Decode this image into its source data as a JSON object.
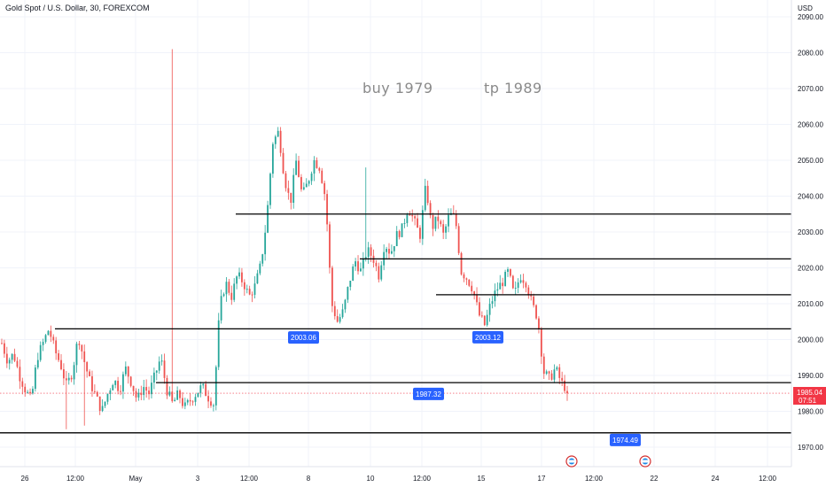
{
  "header": {
    "title": "Gold Spot / U.S. Dollar, 30, FOREXCOM"
  },
  "colors": {
    "up": "#26a69a",
    "down": "#ef5350",
    "badge": "#2962ff",
    "price": "#f23645",
    "line": "#000000"
  },
  "chart_data": {
    "type": "candlestick",
    "title": "Gold Spot / U.S. Dollar, 30, FOREXCOM",
    "currency": "USD",
    "ylim": [
      1967,
      2093
    ],
    "y_ticks": [
      "1970.00",
      "1980.00",
      "1990.00",
      "2000.00",
      "2010.00",
      "2020.00",
      "2030.00",
      "2040.00",
      "2050.00",
      "2060.00",
      "2070.00",
      "2080.00",
      "2090.00"
    ],
    "x_ticks": [
      "26",
      "12:00",
      "May",
      "3",
      "12:00",
      "8",
      "10",
      "12:00",
      "15",
      "17",
      "12:00",
      "22",
      "24",
      "12:00"
    ],
    "annotations": [
      {
        "text": "buy  1979",
        "y": 2073
      },
      {
        "text": "tp  1989",
        "y": 2073
      }
    ],
    "levels": [
      {
        "y": 2035,
        "from": "Apr 30 12:00"
      },
      {
        "y": 2022.5,
        "from": "May 7 12:00"
      },
      {
        "y": 2012.5,
        "from": "May 13"
      },
      {
        "y": 2003,
        "from": "Apr 24"
      },
      {
        "y": 1988,
        "from": "May 2"
      },
      {
        "y": 1974,
        "from": "Apr 24"
      }
    ],
    "labels": [
      {
        "text": "2003.06",
        "y": 2003.06
      },
      {
        "text": "2003.12",
        "y": 2003.12
      },
      {
        "text": "1987.32",
        "y": 1987.32
      },
      {
        "text": "1974.49",
        "y": 1974.49
      }
    ],
    "last_price": {
      "value": "1985.04",
      "countdown": "07:51"
    },
    "candles_close_path": [
      1999,
      1994,
      1996,
      1990,
      1986,
      1983,
      1995,
      1999,
      2003,
      1997,
      1993,
      1987,
      1991,
      2001,
      1994,
      1988,
      1984,
      1980,
      1985,
      1989,
      1986,
      1992,
      1988,
      1983,
      1987,
      1985,
      1990,
      1995,
      1986,
      1982,
      1985,
      1981,
      1983,
      1985,
      1987,
      1984,
      1982,
      2009,
      2016,
      2012,
      2018,
      2016,
      2012,
      2015,
      2021,
      2034,
      2055,
      2058,
      2045,
      2038,
      2050,
      2040,
      2044,
      2050,
      2048,
      2039,
      2010,
      2005,
      2008,
      2016,
      2022,
      2019,
      2025,
      2023,
      2018,
      2027,
      2024,
      2029,
      2031,
      2037,
      2033,
      2029,
      2043,
      2031,
      2034,
      2029,
      2035,
      2034,
      2019,
      2017,
      2014,
      2007,
      2004,
      2010,
      2014,
      2016,
      2019,
      2012,
      2018,
      2016,
      2010,
      2006,
      1991,
      1989,
      1992,
      1988,
      1986
    ]
  }
}
